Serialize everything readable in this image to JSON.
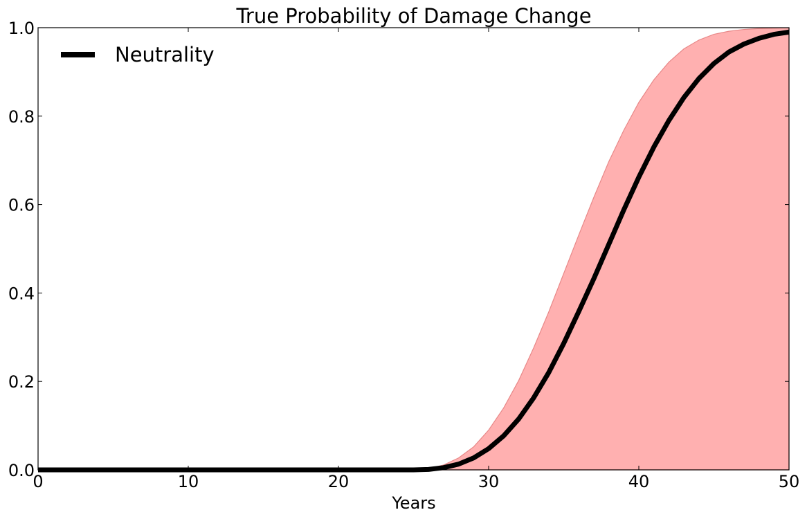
{
  "chart_data": {
    "type": "area",
    "title": "True Probability of Damage Change",
    "xlabel": "Years",
    "ylabel": "",
    "xlim": [
      0,
      50
    ],
    "ylim": [
      0,
      1
    ],
    "xticks": [
      0,
      10,
      20,
      30,
      40,
      50
    ],
    "yticks": [
      0,
      0.2,
      0.4,
      0.6,
      0.8,
      1.0
    ],
    "xtick_labels": [
      "0",
      "10",
      "20",
      "30",
      "40",
      "50"
    ],
    "ytick_labels": [
      "0.0",
      "0.2",
      "0.4",
      "0.6",
      "0.8",
      "1.0"
    ],
    "grid": false,
    "legend": {
      "position": "top-left",
      "entries": [
        "Neutrality"
      ]
    },
    "series": [
      {
        "name": "Neutrality",
        "color": "#000000",
        "x": [
          0,
          5,
          10,
          15,
          20,
          24,
          25,
          26,
          27,
          28,
          29,
          30,
          31,
          32,
          33,
          34,
          35,
          36,
          37,
          38,
          39,
          40,
          41,
          42,
          43,
          44,
          45,
          46,
          47,
          48,
          49,
          50
        ],
        "y": [
          0,
          0,
          0,
          0,
          0,
          0,
          0,
          0.001,
          0.005,
          0.013,
          0.027,
          0.048,
          0.077,
          0.115,
          0.163,
          0.22,
          0.286,
          0.358,
          0.432,
          0.51,
          0.588,
          0.662,
          0.73,
          0.79,
          0.842,
          0.885,
          0.919,
          0.945,
          0.963,
          0.976,
          0.985,
          0.99
        ]
      }
    ],
    "band": {
      "color": "#ffb0b0",
      "edge_color": "#e88888",
      "x": [
        0,
        5,
        10,
        15,
        20,
        24,
        25,
        26,
        27,
        28,
        29,
        30,
        31,
        32,
        33,
        34,
        35,
        36,
        37,
        38,
        39,
        40,
        41,
        42,
        43,
        44,
        45,
        46,
        47,
        48,
        49,
        50
      ],
      "upper": [
        0,
        0,
        0,
        0,
        0,
        0,
        0,
        0.003,
        0.011,
        0.027,
        0.052,
        0.09,
        0.14,
        0.202,
        0.276,
        0.357,
        0.444,
        0.531,
        0.616,
        0.697,
        0.768,
        0.831,
        0.882,
        0.922,
        0.952,
        0.972,
        0.985,
        0.992,
        0.996,
        0.998,
        0.999,
        1.0
      ],
      "lower": [
        0,
        0,
        0,
        0,
        0,
        0,
        0,
        0,
        0,
        0,
        0,
        0,
        0,
        0,
        0,
        0,
        0,
        0,
        0,
        0,
        0,
        0,
        0,
        0,
        0,
        0,
        0,
        0,
        0,
        0,
        0,
        0
      ]
    }
  }
}
